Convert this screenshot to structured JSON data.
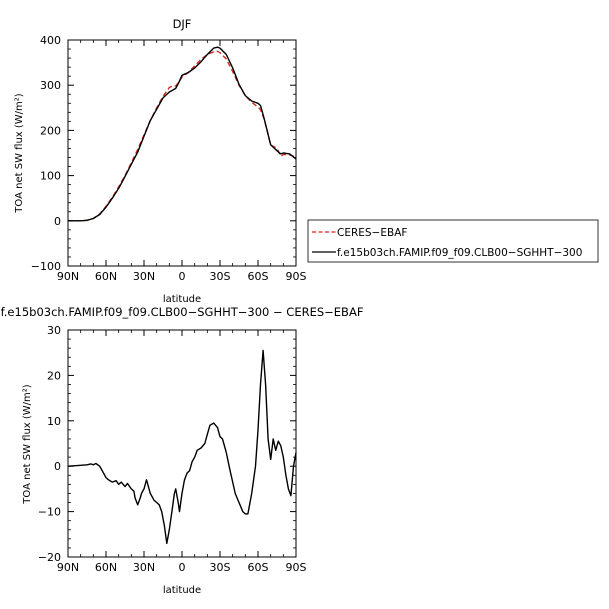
{
  "chart_data": [
    {
      "type": "line",
      "title": "DJF",
      "xlabel": "latitude",
      "ylabel": "TOA net SW flux (W/m²)",
      "xlim": [
        90,
        -90
      ],
      "ylim": [
        -100,
        400
      ],
      "xticks": [
        90,
        60,
        30,
        0,
        -30,
        -60,
        -90
      ],
      "xtick_labels": [
        "90N",
        "60N",
        "30N",
        "0",
        "30S",
        "60S",
        "90S"
      ],
      "yticks": [
        -100,
        0,
        100,
        200,
        300,
        400
      ],
      "ytick_labels": [
        "−100",
        "0",
        "100",
        "200",
        "300",
        "400"
      ],
      "legend_position": "right",
      "series": [
        {
          "name": "CERES−EBAF",
          "color": "#d9261c",
          "dash": "dashed",
          "x": [
            90,
            80,
            75,
            70,
            65,
            60,
            55,
            50,
            45,
            40,
            35,
            30,
            25,
            20,
            15,
            10,
            8,
            5,
            3,
            0,
            -5,
            -10,
            -15,
            -20,
            -25,
            -28,
            -30,
            -35,
            -40,
            -45,
            -50,
            -55,
            -60,
            -62,
            -65,
            -70,
            -75,
            -78,
            -80,
            -85,
            -90
          ],
          "y": [
            0,
            0,
            1,
            5,
            15,
            32,
            52,
            75,
            100,
            128,
            158,
            190,
            222,
            250,
            275,
            295,
            298,
            298,
            305,
            318,
            328,
            343,
            357,
            368,
            374,
            375,
            372,
            358,
            330,
            300,
            277,
            262,
            252,
            246,
            224,
            168,
            160,
            143,
            147,
            146,
            141
          ]
        },
        {
          "name": "f.e15b03ch.FAMIP.f09_f09.CLB00−SGHHT−300",
          "color": "#000000",
          "dash": "solid",
          "x": [
            90,
            80,
            75,
            70,
            65,
            60,
            55,
            50,
            45,
            40,
            35,
            30,
            25,
            20,
            15,
            10,
            8,
            5,
            3,
            0,
            -5,
            -10,
            -15,
            -20,
            -25,
            -28,
            -30,
            -35,
            -40,
            -45,
            -50,
            -55,
            -60,
            -62,
            -65,
            -70,
            -75,
            -78,
            -80,
            -85,
            -90
          ],
          "y": [
            0,
            0,
            1,
            5,
            14,
            30,
            50,
            72,
            98,
            125,
            152,
            187,
            222,
            247,
            272,
            285,
            288,
            293,
            303,
            322,
            328,
            338,
            352,
            368,
            382,
            384,
            382,
            368,
            338,
            302,
            277,
            265,
            260,
            255,
            225,
            168,
            155,
            148,
            150,
            148,
            137
          ]
        }
      ]
    },
    {
      "type": "line",
      "title": "f.e15b03ch.FAMIP.f09_f09.CLB00−SGHHT−300 − CERES−EBAF",
      "xlabel": "latitude",
      "ylabel": "TOA net SW flux (W/m²)",
      "xlim": [
        90,
        -90
      ],
      "ylim": [
        -20,
        30
      ],
      "xticks": [
        90,
        60,
        30,
        0,
        -30,
        -60,
        -90
      ],
      "xtick_labels": [
        "90N",
        "60N",
        "30N",
        "0",
        "30S",
        "60S",
        "90S"
      ],
      "yticks": [
        -20,
        -10,
        0,
        10,
        20,
        30
      ],
      "ytick_labels": [
        "−20",
        "−10",
        "0",
        "10",
        "20",
        "30"
      ],
      "series": [
        {
          "color": "#000000",
          "dash": "solid",
          "x": [
            90,
            80,
            75,
            72,
            70,
            68,
            65,
            62,
            60,
            58,
            55,
            52,
            50,
            48,
            45,
            43,
            40,
            38,
            37,
            35,
            33,
            32,
            30,
            28,
            25,
            22,
            20,
            18,
            16,
            14,
            12,
            10,
            8,
            6,
            5,
            3,
            2,
            0,
            -2,
            -4,
            -6,
            -8,
            -10,
            -12,
            -15,
            -18,
            -20,
            -22,
            -25,
            -28,
            -30,
            -32,
            -35,
            -38,
            -40,
            -42,
            -45,
            -48,
            -50,
            -52,
            -55,
            -58,
            -60,
            -62,
            -64,
            -66,
            -68,
            -70,
            -72,
            -74,
            -76,
            -78,
            -80,
            -82,
            -84,
            -86,
            -88,
            -90
          ],
          "y": [
            0,
            0.2,
            0.3,
            0.5,
            0.3,
            0.6,
            0,
            -1.5,
            -2.5,
            -3,
            -3.5,
            -3.2,
            -4,
            -3.5,
            -4.5,
            -3.8,
            -5,
            -5.5,
            -7,
            -8.5,
            -7,
            -6,
            -5,
            -3,
            -6,
            -7.5,
            -8,
            -8.5,
            -10,
            -13,
            -17,
            -14,
            -10,
            -6,
            -5,
            -8,
            -10,
            -6,
            -3,
            -1.5,
            -1,
            1,
            2,
            3.5,
            4,
            5,
            7,
            9,
            9.5,
            8.5,
            6.5,
            6,
            3,
            -1,
            -3.5,
            -6,
            -8,
            -10,
            -10.5,
            -10.5,
            -6,
            0,
            8,
            18,
            25.5,
            18,
            6,
            1.5,
            6,
            3.5,
            5.5,
            4.5,
            2,
            -2,
            -5,
            -6.5,
            0,
            3
          ]
        }
      ]
    }
  ],
  "legend": {
    "items": [
      "CERES−EBAF",
      "f.e15b03ch.FAMIP.f09_f09.CLB00−SGHHT−300"
    ]
  }
}
